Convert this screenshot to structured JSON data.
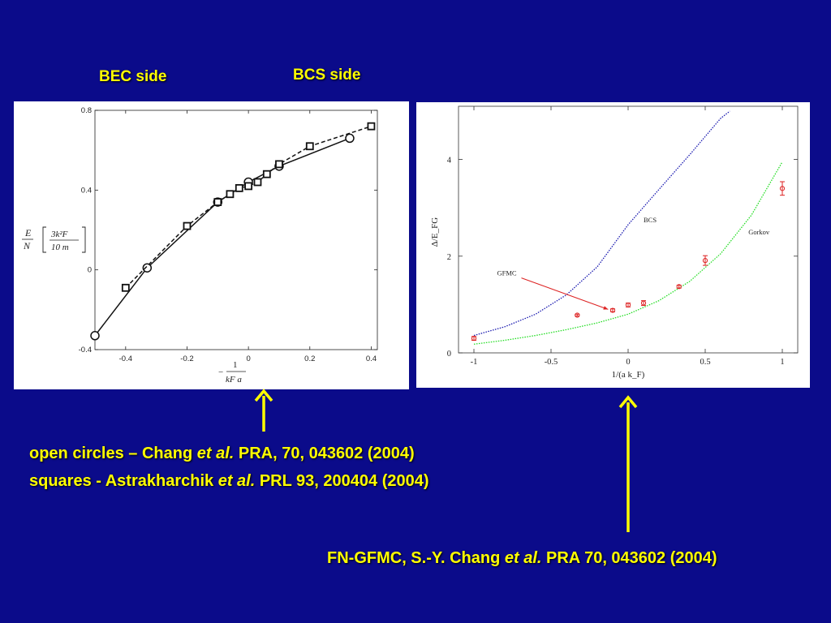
{
  "header": {
    "bec_label": "BEC side",
    "bcs_label": "BCS side"
  },
  "citations": {
    "line1": {
      "pre": "open circles – Chang ",
      "ital": "et al.",
      "post": " PRA, 70, 043602 (2004)"
    },
    "line2": {
      "pre": "squares  - Astrakharchik ",
      "ital": "et al.",
      "post": " PRL 93, 200404 (2004)"
    },
    "line3": {
      "pre": "FN-GFMC, S.-Y. Chang ",
      "ital": "et al.",
      "post": " PRA 70, 043602 (2004)"
    }
  },
  "colors": {
    "background": "#0b0b8a",
    "text": "#ffff00",
    "arrow": "#ffff00",
    "bcs_curve": "#1a1ab0",
    "gorkov_curve": "#22dd22",
    "gfmc_points": "#dd2222"
  },
  "chart_data": [
    {
      "type": "line",
      "xlim": [
        -0.5,
        0.42
      ],
      "ylim": [
        -0.4,
        0.8
      ],
      "xticks": [
        "-0.4",
        "-0.2",
        "0",
        "0.2",
        "0.4"
      ],
      "yticks": [
        "-0.4",
        "0",
        "0.4",
        "0.8"
      ],
      "ylabel": {
        "lhs_num": "E",
        "lhs_den": "N",
        "br_num": "3k²F",
        "br_den": "10 m"
      },
      "xlabel": {
        "num": "1",
        "den": "kF a",
        "sign": "−"
      },
      "grid": false,
      "series": [
        {
          "marker": "circle",
          "style": "solid",
          "x": [
            -0.5,
            -0.33,
            -0.1,
            0,
            0.1,
            0.33
          ],
          "y": [
            -0.33,
            0.01,
            0.34,
            0.44,
            0.52,
            0.66
          ]
        },
        {
          "marker": "square",
          "style": "dashed",
          "x": [
            -0.4,
            -0.2,
            -0.1,
            -0.06,
            -0.03,
            0,
            0.03,
            0.06,
            0.1,
            0.2,
            0.4
          ],
          "y": [
            -0.09,
            0.22,
            0.34,
            0.38,
            0.41,
            0.42,
            0.44,
            0.48,
            0.53,
            0.62,
            0.72
          ]
        }
      ]
    },
    {
      "type": "line",
      "xlim": [
        -1.1,
        1.1
      ],
      "ylim": [
        0,
        5.1
      ],
      "xticks": [
        "-1",
        "-0.5",
        "0",
        "0.5",
        "1"
      ],
      "yticks": [
        "0",
        "2",
        "4"
      ],
      "xlabel": "1/(a k_F)",
      "ylabel": "Δ/E_FG",
      "grid": false,
      "series": [
        {
          "name": "BCS",
          "style": "dotted",
          "x": [
            -1,
            -0.8,
            -0.6,
            -0.4,
            -0.2,
            0,
            0.2,
            0.4,
            0.6,
            0.66
          ],
          "y": [
            0.36,
            0.54,
            0.8,
            1.2,
            1.78,
            2.65,
            3.38,
            4.1,
            4.85,
            5.0
          ]
        },
        {
          "name": "Gorkov",
          "style": "dotted",
          "x": [
            -1,
            -0.8,
            -0.6,
            -0.4,
            -0.2,
            0,
            0.2,
            0.4,
            0.6,
            0.8,
            1.0
          ],
          "y": [
            0.18,
            0.26,
            0.36,
            0.48,
            0.62,
            0.8,
            1.08,
            1.48,
            2.05,
            2.85,
            3.95
          ]
        },
        {
          "name": "GFMC",
          "style": "points",
          "x": [
            -1,
            -0.33,
            -0.1,
            0,
            0.1,
            0.33,
            0.5,
            1.0
          ],
          "y": [
            0.3,
            0.78,
            0.88,
            0.99,
            1.03,
            1.37,
            1.91,
            3.4
          ],
          "err": [
            0.04,
            0.02,
            0.03,
            0.04,
            0.05,
            0.03,
            0.1,
            0.14
          ]
        }
      ],
      "annotations": [
        {
          "text": "BCS",
          "x": 0.1,
          "y": 2.7
        },
        {
          "text": "Gorkov",
          "x": 0.78,
          "y": 2.45
        },
        {
          "text": "GFMC",
          "x": -0.85,
          "y": 1.6,
          "arrow_to": [
            -0.13,
            0.9
          ]
        }
      ]
    }
  ]
}
